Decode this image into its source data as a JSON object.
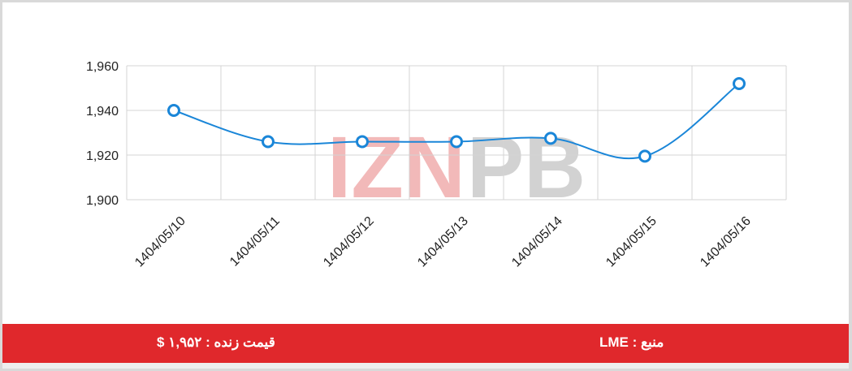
{
  "watermark": {
    "text_part1": "IZN",
    "text_part2": "PB",
    "color_part1": "#e88080",
    "color_part2": "#b4b4b4"
  },
  "footer": {
    "source_label": "منبع : LME",
    "live_price_label": "قیمت زنده : ۱,۹۵۲ $",
    "background_color": "#e0282c"
  },
  "chart_data": {
    "type": "line",
    "categories": [
      "1404/05/10",
      "1404/05/11",
      "1404/05/12",
      "1404/05/13",
      "1404/05/14",
      "1404/05/15",
      "1404/05/16"
    ],
    "series": [
      {
        "values": [
          1940,
          1926,
          1926,
          1926,
          1927.5,
          1919.5,
          1952
        ],
        "color": "#1a86d8"
      }
    ],
    "y_ticks": [
      "1,960",
      "1,940",
      "1,920",
      "1,900"
    ],
    "y_tick_values": [
      1960,
      1940,
      1920,
      1900
    ],
    "ylim": [
      1900,
      1960
    ],
    "grid": true,
    "title": "",
    "xlabel": "",
    "ylabel": ""
  }
}
